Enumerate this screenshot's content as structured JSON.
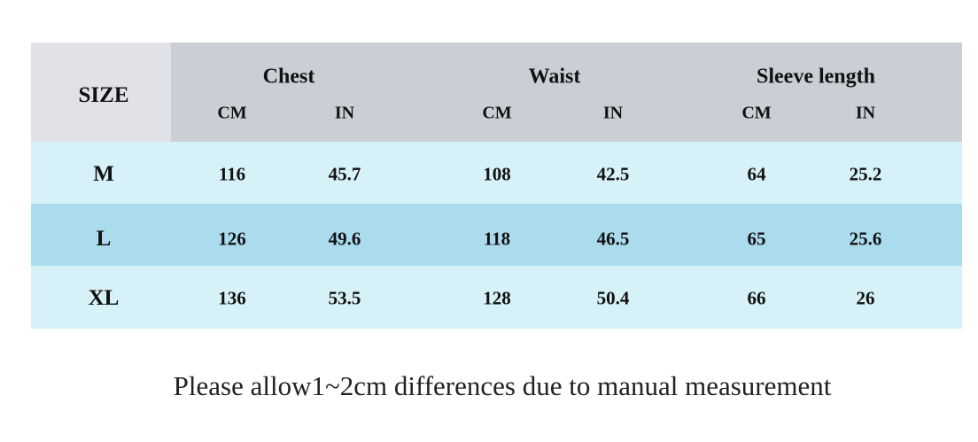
{
  "table": {
    "header": {
      "size": "SIZE",
      "groups": [
        {
          "title": "Chest",
          "units": [
            "CM",
            "IN"
          ]
        },
        {
          "title": "Waist",
          "units": [
            "CM",
            "IN"
          ]
        },
        {
          "title": "Sleeve length",
          "units": [
            "CM",
            "IN"
          ]
        }
      ]
    },
    "rows": [
      [
        "M",
        "116",
        "45.7",
        "108",
        "42.5",
        "64",
        "25.2"
      ],
      [
        "L",
        "126",
        "49.6",
        "118",
        "46.5",
        "65",
        "25.6"
      ],
      [
        "XL",
        "136",
        "53.5",
        "128",
        "50.4",
        "66",
        "26"
      ]
    ]
  },
  "note": "Please allow1~2cm differences due to manual measurement"
}
